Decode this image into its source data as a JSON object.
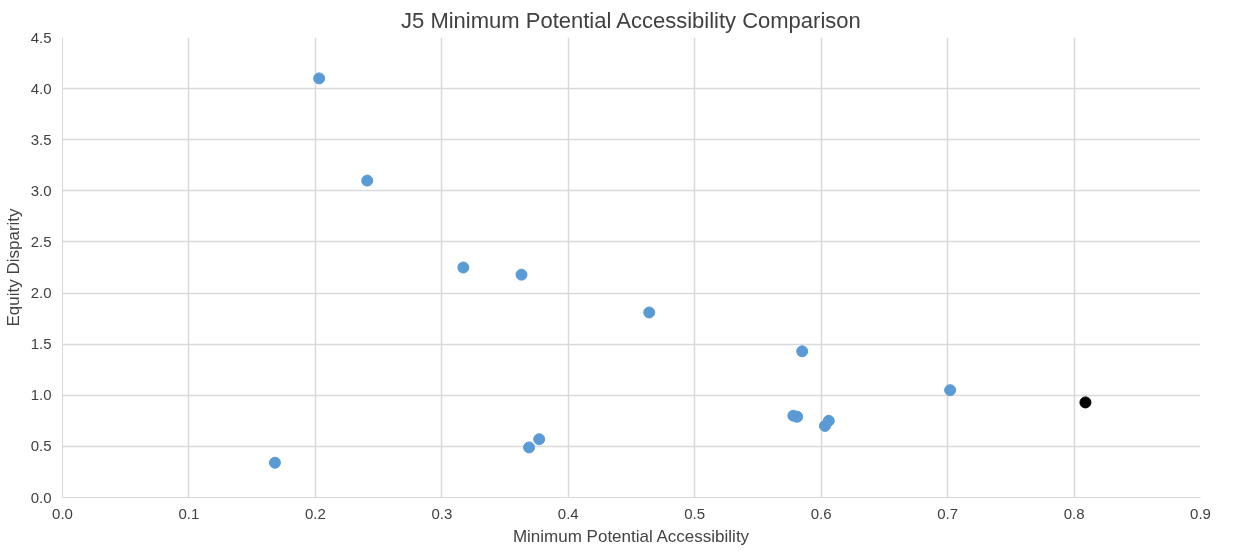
{
  "chart_data": {
    "type": "scatter",
    "title": "J5 Minimum Potential Accessibility Comparison",
    "xlabel": "Minimum Potential Accessibility",
    "ylabel": "Equity Disparity",
    "series": [
      {
        "color": "#5b9bd5",
        "x": [
          0.203,
          0.241,
          0.317,
          0.363,
          0.464,
          0.585,
          0.702,
          0.578,
          0.581,
          0.603,
          0.606,
          0.369,
          0.377,
          0.168
        ],
        "values": [
          4.1,
          3.1,
          2.25,
          2.18,
          1.81,
          1.43,
          1.05,
          0.8,
          0.79,
          0.7,
          0.75,
          0.49,
          0.57,
          0.34
        ]
      },
      {
        "color": "#000000",
        "x": [
          0.809
        ],
        "values": [
          0.93
        ]
      }
    ],
    "xlim": [
      0,
      0.9
    ],
    "xticks": [
      {
        "value": 0,
        "label": "0.0"
      },
      0.1,
      0.2,
      0.3,
      0.4,
      0.5,
      0.6,
      0.7,
      0.8,
      0.9
    ],
    "ylim": [
      0,
      4.5
    ],
    "yticks": [
      {
        "value": 0,
        "label": "0.0"
      },
      0.5,
      {
        "value": 1,
        "label": "1.0"
      },
      1.5,
      {
        "value": 2,
        "label": "2.0"
      },
      2.5,
      {
        "value": 3,
        "label": "3.0"
      },
      3.5,
      {
        "value": 4,
        "label": "4.0"
      },
      4.5
    ],
    "grid": true,
    "marker": "circle"
  }
}
